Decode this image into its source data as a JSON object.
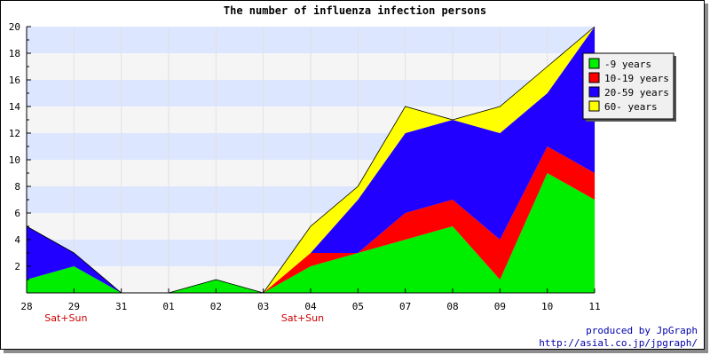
{
  "chart_data": {
    "type": "area",
    "stacked": true,
    "title": "The number of influenza infection persons",
    "categories": [
      "28",
      "29",
      "31",
      "01",
      "02",
      "03",
      "04",
      "05",
      "07",
      "08",
      "09",
      "10",
      "11"
    ],
    "category_notes": [
      {
        "category": "29",
        "text": "Sat+Sun"
      },
      {
        "category": "04",
        "text": "Sat+Sun"
      }
    ],
    "ylim": [
      0,
      20
    ],
    "yticks": [
      2,
      4,
      6,
      8,
      10,
      12,
      14,
      16,
      18,
      20
    ],
    "grid": "horizontal bands, alternating",
    "legend_position": "top-right",
    "series": [
      {
        "name": "-9 years",
        "color": "#00ee00",
        "values": [
          1,
          2,
          0,
          0,
          1,
          0,
          2,
          3,
          4,
          5,
          1,
          9,
          7
        ]
      },
      {
        "name": "10-19 years",
        "color": "#ff0000",
        "values": [
          0,
          0,
          0,
          0,
          0,
          0,
          1,
          0,
          2,
          2,
          3,
          2,
          2
        ]
      },
      {
        "name": "20-59 years",
        "color": "#2200ff",
        "values": [
          4,
          1,
          0,
          0,
          0,
          0,
          0,
          4,
          6,
          6,
          8,
          4,
          11
        ]
      },
      {
        "name": "60- years",
        "color": "#ffff00",
        "values": [
          0,
          0,
          0,
          0,
          0,
          0,
          2,
          1,
          2,
          0,
          2,
          2,
          0
        ]
      }
    ],
    "colors": {
      "band_light": "#f5f5f5",
      "band_blue": "#dde6ff",
      "note_color": "#cc0000",
      "credit_color": "#0000aa"
    }
  },
  "footer": {
    "credit_line1": "produced by JpGraph",
    "credit_line2": "http://asial.co.jp/jpgraph/"
  }
}
